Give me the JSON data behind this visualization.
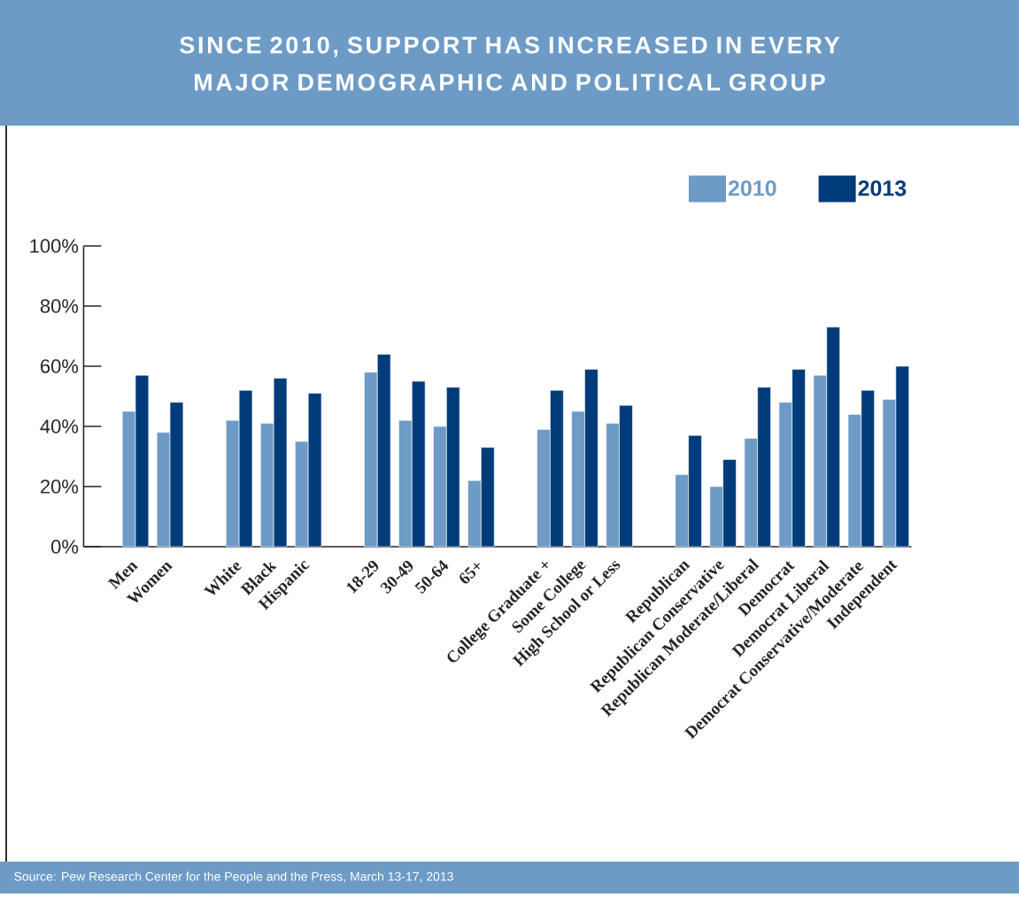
{
  "chart_data": {
    "type": "bar",
    "title": "SINCE 2010, SUPPORT HAS INCREASED IN EVERY MAJOR DEMOGRAPHIC AND POLITICAL GROUP",
    "categories": [
      "Men",
      "Women",
      null,
      "White",
      "Black",
      "Hispanic",
      null,
      "18-29",
      "30-49",
      "50-64",
      "65+",
      null,
      "College Graduate +",
      "Some College",
      "High School or Less",
      null,
      "Republican",
      "Republican Conservative",
      "Republican Moderate/Liberal",
      "Democrat",
      "Democrat Liberal",
      "Democrat Conservative/Moderate",
      "Independent"
    ],
    "series": [
      {
        "name": "2010",
        "color": "#6d9bc6",
        "values": [
          45,
          38,
          null,
          42,
          41,
          35,
          null,
          58,
          42,
          40,
          22,
          null,
          39,
          45,
          41,
          null,
          24,
          20,
          36,
          48,
          57,
          44,
          49
        ]
      },
      {
        "name": "2013",
        "color": "#003b7a",
        "values": [
          57,
          48,
          null,
          52,
          56,
          51,
          null,
          64,
          55,
          53,
          33,
          null,
          52,
          59,
          47,
          null,
          37,
          29,
          53,
          59,
          73,
          52,
          60
        ]
      }
    ],
    "ylim": [
      0,
      100
    ],
    "yticks": [
      {
        "value": 0,
        "label": "0%"
      },
      {
        "value": 20,
        "label": "20%"
      },
      {
        "value": 40,
        "label": "40%"
      },
      {
        "value": 60,
        "label": "60%"
      },
      {
        "value": 80,
        "label": "80%"
      },
      {
        "value": 100,
        "label": "100%"
      }
    ],
    "legend": "top right",
    "annotations": [
      "Source: Pew Research Center for the People and the Press, March 13-17, 2013"
    ]
  }
}
